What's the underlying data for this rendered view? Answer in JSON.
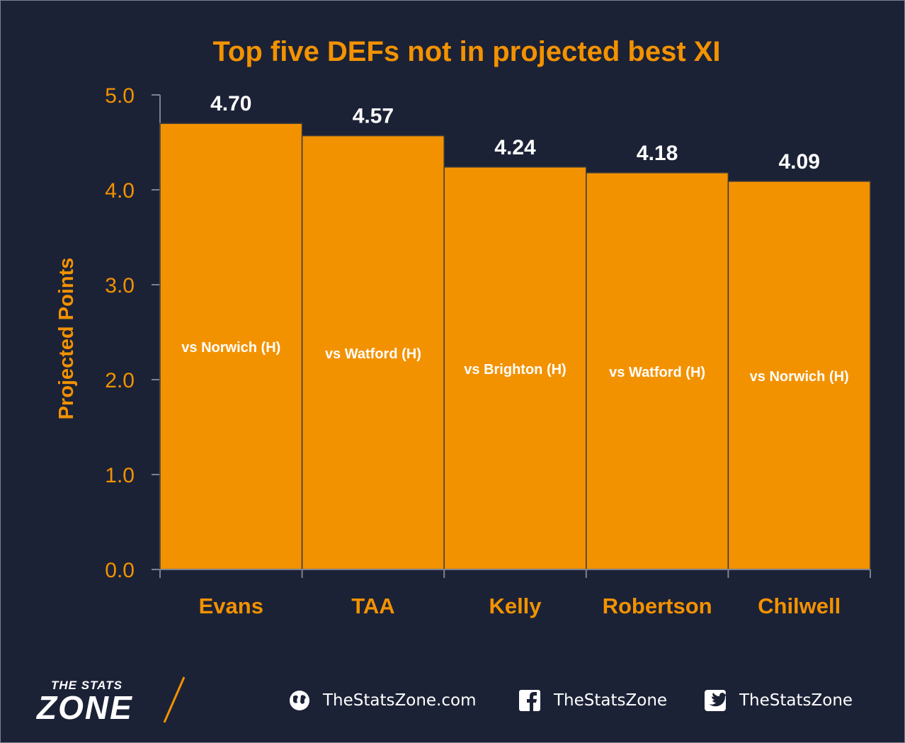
{
  "chart_data": {
    "type": "bar",
    "title": "Top five DEFs not in projected best XI",
    "ylabel": "Projected Points",
    "xlabel": "",
    "ylim": [
      0,
      5
    ],
    "yticks": [
      "0.0",
      "1.0",
      "2.0",
      "3.0",
      "4.0",
      "5.0"
    ],
    "grid": false,
    "categories": [
      "Evans",
      "TAA",
      "Kelly",
      "Robertson",
      "Chilwell"
    ],
    "values": [
      4.7,
      4.57,
      4.24,
      4.18,
      4.09
    ],
    "data_labels": [
      "4.70",
      "4.57",
      "4.24",
      "4.18",
      "4.09"
    ],
    "bar_annotations": [
      "vs Norwich (H)",
      "vs Watford (H)",
      "vs Brighton (H)",
      "vs Watford (H)",
      "vs Norwich (H)"
    ],
    "colors": {
      "background": "#1c2236",
      "bar": "#f39200",
      "accent_text": "#f39200",
      "label_text": "#ffffff"
    }
  },
  "footer": {
    "logo_top": "THE STATS",
    "logo_main": "ZONE",
    "website": "TheStatsZone.com",
    "facebook": "TheStatsZone",
    "twitter": "TheStatsZone",
    "icons": [
      "globe-icon",
      "facebook-icon",
      "twitter-icon"
    ]
  }
}
